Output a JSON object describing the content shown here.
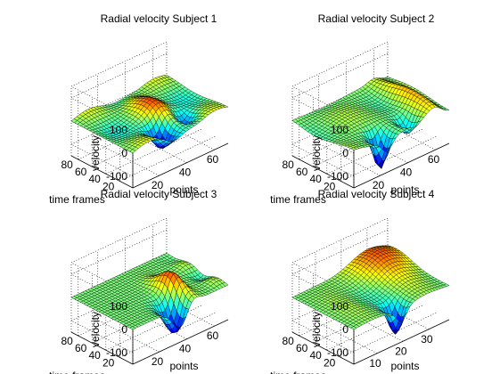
{
  "figure": {
    "background": "#ffffff"
  },
  "chart_data": [
    {
      "type": "surface",
      "title": "Radial velocity Subject 1",
      "xlabel": "points",
      "ylabel": "time frames",
      "zlabel": "velocity",
      "x_ticks": [
        20,
        40,
        60
      ],
      "y_ticks": [
        20,
        40,
        60,
        80
      ],
      "z_ticks": [
        -100,
        0,
        100
      ],
      "xlim": [
        1,
        70
      ],
      "ylim": [
        1,
        90
      ],
      "zlim": [
        -150,
        150
      ],
      "grid": true,
      "colormap": "jet",
      "peak_velocity": 55,
      "trough_velocity": -85
    },
    {
      "type": "surface",
      "title": "Radial velocity Subject 2",
      "xlabel": "points",
      "ylabel": "time frames",
      "zlabel": "velocity",
      "x_ticks": [
        20,
        40,
        60
      ],
      "y_ticks": [
        20,
        40,
        60,
        80
      ],
      "z_ticks": [
        -100,
        0,
        100
      ],
      "xlim": [
        1,
        70
      ],
      "ylim": [
        1,
        90
      ],
      "zlim": [
        -150,
        150
      ],
      "grid": true,
      "colormap": "jet",
      "peak_velocity": 60,
      "trough_velocity": -140
    },
    {
      "type": "surface",
      "title": "Radial velocity Subject 3",
      "xlabel": "points",
      "ylabel": "time frames",
      "zlabel": "velocity",
      "x_ticks": [
        20,
        40,
        60
      ],
      "y_ticks": [
        20,
        40,
        60,
        80
      ],
      "z_ticks": [
        -100,
        0,
        100
      ],
      "xlim": [
        1,
        70
      ],
      "ylim": [
        1,
        90
      ],
      "zlim": [
        -150,
        150
      ],
      "grid": true,
      "colormap": "jet",
      "peak_velocity": 90,
      "trough_velocity": -130
    },
    {
      "type": "surface",
      "title": "Radial velocity Subject 4",
      "xlabel": "points",
      "ylabel": "time frames",
      "zlabel": "velocity",
      "x_ticks": [
        10,
        20,
        30
      ],
      "y_ticks": [
        20,
        40,
        60,
        80
      ],
      "z_ticks": [
        -100,
        0,
        100
      ],
      "xlim": [
        1,
        38
      ],
      "ylim": [
        1,
        90
      ],
      "zlim": [
        -150,
        150
      ],
      "grid": true,
      "colormap": "jet",
      "peak_velocity": 65,
      "trough_velocity": -120
    }
  ]
}
